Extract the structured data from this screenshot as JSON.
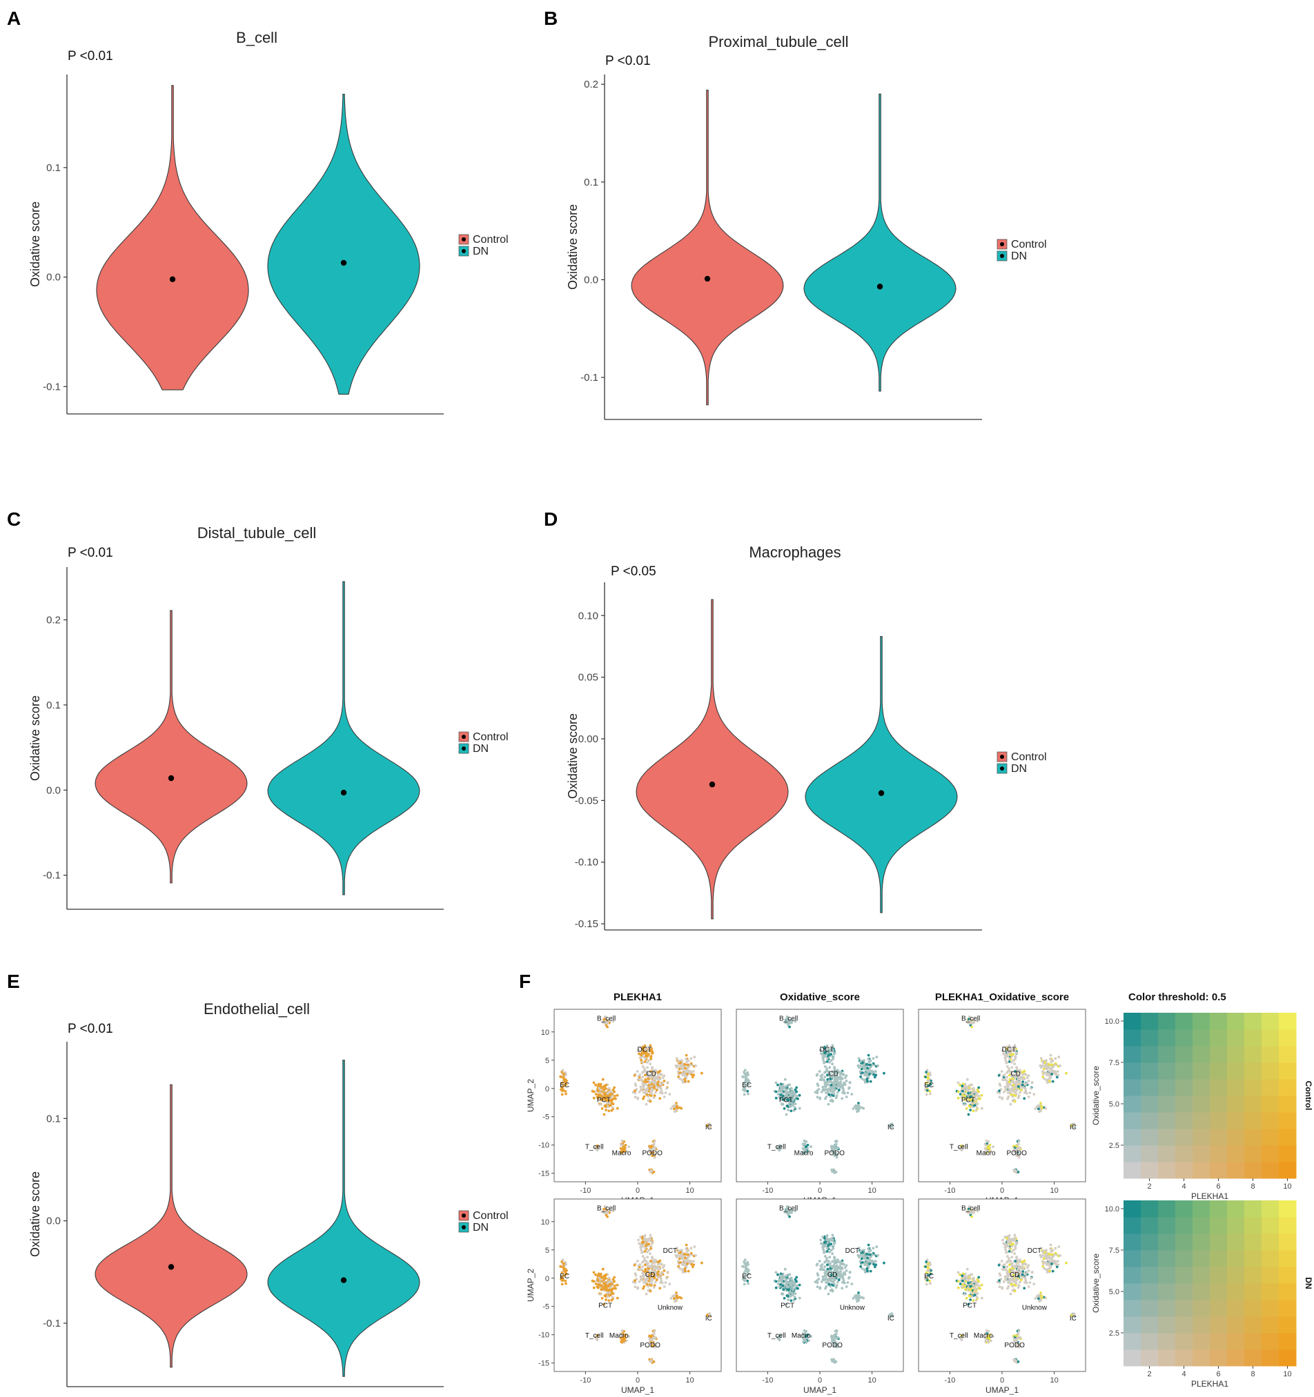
{
  "chart_data": [
    {
      "panel": "A",
      "type": "violin",
      "title": "B_cell",
      "annotation": "P <0.01",
      "ylabel": "Oxidative score",
      "ylim": [
        -0.125,
        0.185
      ],
      "yticks": [
        -0.1,
        0.0,
        0.1
      ],
      "ytick_labels": [
        "-0.1",
        "0.0",
        "0.1"
      ],
      "series": [
        {
          "name": "Control",
          "min": -0.103,
          "max": 0.175,
          "median": -0.002,
          "mode": -0.012,
          "spread": 0.048
        },
        {
          "name": "DN",
          "min": -0.107,
          "max": 0.167,
          "median": 0.013,
          "mode": 0.01,
          "spread": 0.053
        }
      ]
    },
    {
      "panel": "B",
      "type": "violin",
      "title": "Proximal_tubule_cell",
      "annotation": "P <0.01",
      "ylabel": "Oxidative score",
      "ylim": [
        -0.143,
        0.21
      ],
      "yticks": [
        -0.1,
        0.0,
        0.1,
        0.2
      ],
      "ytick_labels": [
        "-0.1",
        "0.0",
        "0.1",
        "0.2"
      ],
      "series": [
        {
          "name": "Control",
          "min": -0.128,
          "max": 0.194,
          "median": 0.001,
          "mode": -0.006,
          "spread": 0.033
        },
        {
          "name": "DN",
          "min": -0.114,
          "max": 0.19,
          "median": -0.007,
          "mode": -0.009,
          "spread": 0.031
        }
      ]
    },
    {
      "panel": "C",
      "type": "violin",
      "title": "Distal_tubule_cell",
      "annotation": "P <0.01",
      "ylabel": "Oxidative score",
      "ylim": [
        -0.14,
        0.262
      ],
      "yticks": [
        -0.1,
        0.0,
        0.1,
        0.2
      ],
      "ytick_labels": [
        "-0.1",
        "0.0",
        "0.1",
        "0.2"
      ],
      "series": [
        {
          "name": "Control",
          "min": -0.109,
          "max": 0.211,
          "median": 0.014,
          "mode": 0.008,
          "spread": 0.036
        },
        {
          "name": "DN",
          "min": -0.123,
          "max": 0.245,
          "median": -0.003,
          "mode": -0.001,
          "spread": 0.036
        }
      ]
    },
    {
      "panel": "D",
      "type": "violin",
      "title": "Macrophages",
      "annotation": "P <0.05",
      "ylabel": "Oxidative score",
      "ylim": [
        -0.155,
        0.127
      ],
      "yticks": [
        -0.15,
        -0.1,
        -0.05,
        0.0,
        0.05,
        0.1
      ],
      "ytick_labels": [
        "-0.15",
        "-0.10",
        "-0.05",
        "0.00",
        "0.05",
        "0.10"
      ],
      "series": [
        {
          "name": "Control",
          "min": -0.146,
          "max": 0.113,
          "median": -0.037,
          "mode": -0.043,
          "spread": 0.03
        },
        {
          "name": "DN",
          "min": -0.141,
          "max": 0.083,
          "median": -0.044,
          "mode": -0.047,
          "spread": 0.026
        }
      ]
    },
    {
      "panel": "E",
      "type": "violin",
      "title": "Endothelial_cell",
      "annotation": "P <0.01",
      "ylabel": "Oxidative score",
      "ylim": [
        -0.162,
        0.175
      ],
      "yticks": [
        -0.1,
        0.0,
        0.1
      ],
      "ytick_labels": [
        "-0.1",
        "0.0",
        "0.1"
      ],
      "series": [
        {
          "name": "Control",
          "min": -0.143,
          "max": 0.133,
          "median": -0.045,
          "mode": -0.052,
          "spread": 0.028
        },
        {
          "name": "DN",
          "min": -0.152,
          "max": 0.157,
          "median": -0.058,
          "mode": -0.06,
          "spread": 0.03
        }
      ]
    },
    {
      "panel": "F",
      "type": "scatter",
      "subtype": "UMAP feature blend",
      "column_titles": [
        "PLEKHA1",
        "Oxidative_score",
        "PLEKHA1_Oxidative_score",
        "Color threshold: 0.5"
      ],
      "row_labels": [
        "Control",
        "DN"
      ],
      "xlabel": "UMAP_1",
      "ylabel": "UMAP_2",
      "x_ticks": [
        -10,
        0,
        10
      ],
      "x_tick_labels": [
        "-10",
        "0",
        "10"
      ],
      "y_ticks": [
        10,
        5,
        0,
        -5,
        -10,
        -15
      ],
      "y_tick_labels": [
        "10",
        "5",
        "0",
        "-5",
        "-10",
        "-15"
      ],
      "xlim": [
        -16,
        16
      ],
      "ylim": [
        -16.5,
        14
      ],
      "cluster_labels_control": [
        {
          "text": "B_cell",
          "x": -6,
          "y": 12
        },
        {
          "text": "DCT",
          "x": 1.3,
          "y": 6.5
        },
        {
          "text": "EC",
          "x": -14,
          "y": 0.2
        },
        {
          "text": "CD",
          "x": 2.6,
          "y": 2.2
        },
        {
          "text": "PCT",
          "x": -6.5,
          "y": -2.4
        },
        {
          "text": "IC",
          "x": 13.6,
          "y": -7.2
        },
        {
          "text": "T_cell",
          "x": -8.3,
          "y": -10.7
        },
        {
          "text": "Macro",
          "x": -3.1,
          "y": -11.8
        },
        {
          "text": "PODO",
          "x": 2.8,
          "y": -11.8
        }
      ],
      "cluster_labels_dn": [
        {
          "text": "B_cell",
          "x": -6,
          "y": 12
        },
        {
          "text": "DCT",
          "x": 6.2,
          "y": 4.5
        },
        {
          "text": "EC",
          "x": -14,
          "y": 0
        },
        {
          "text": "CD",
          "x": 2.4,
          "y": 0.2
        },
        {
          "text": "PCT",
          "x": -6.2,
          "y": -5.2
        },
        {
          "text": "Unknow",
          "x": 6.2,
          "y": -5.6
        },
        {
          "text": "IC",
          "x": 13.6,
          "y": -7.5
        },
        {
          "text": "T_cell",
          "x": -8.3,
          "y": -10.5
        },
        {
          "text": "Macro",
          "x": -3.6,
          "y": -10.5
        },
        {
          "text": "PODO",
          "x": 2.4,
          "y": -12.2
        }
      ],
      "legend_heatmap": {
        "xlabel": "PLEKHA1",
        "ylabel": "Oxidative_score",
        "range": [
          1,
          10
        ],
        "x_ticks": [
          2,
          4,
          6,
          8,
          10
        ],
        "x_tick_labels": [
          "2",
          "4",
          "6",
          "8",
          "10"
        ],
        "y_ticks": [
          2.5,
          5.0,
          7.5,
          10.0
        ],
        "y_tick_labels": [
          "2.5",
          "5.0",
          "7.5",
          "10.0"
        ]
      }
    }
  ],
  "legend": {
    "items": [
      "Control",
      "DN"
    ]
  },
  "colors": {
    "control": "#ec7168",
    "dn": "#1cb8b9",
    "outline": "#3a3a3a",
    "umap_gray": "#d3cdc4",
    "plekha1": "#e8a030",
    "oxidative": "#1f8a8a",
    "oxidative_gray": "#a9c3c1",
    "blend_yellow": "#e9e04a"
  }
}
